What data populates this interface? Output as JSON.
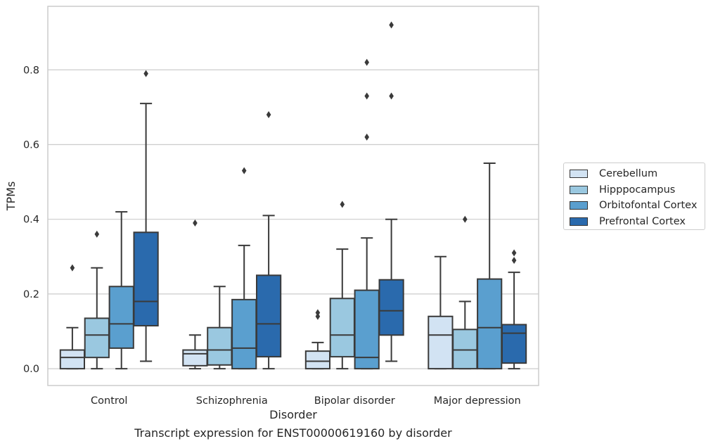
{
  "caption": "Transcript expression for ENST00000619160 by disorder",
  "chart_data": {
    "type": "box",
    "xlabel": "Disorder",
    "ylabel": "TPMs",
    "ylim": [
      -0.045,
      0.97
    ],
    "yticks": [
      0.0,
      0.2,
      0.4,
      0.6,
      0.8
    ],
    "ytick_labels": [
      "0.0",
      "0.2",
      "0.4",
      "0.6",
      "0.8"
    ],
    "grid": "horizontal",
    "legend_position": "right",
    "categories": [
      "Control",
      "Schizophrenia",
      "Bipolar disorder",
      "Major depression"
    ],
    "series": [
      {
        "name": "Cerebellum",
        "color": "#d2e3f3",
        "boxes": [
          {
            "whislo": 0.0,
            "q1": 0.0,
            "med": 0.03,
            "q3": 0.05,
            "whishi": 0.11,
            "fliers": [
              0.27
            ]
          },
          {
            "whislo": 0.0,
            "q1": 0.008,
            "med": 0.04,
            "q3": 0.05,
            "whishi": 0.09,
            "fliers": [
              0.39
            ]
          },
          {
            "whislo": 0.0,
            "q1": 0.0,
            "med": 0.02,
            "q3": 0.047,
            "whishi": 0.07,
            "fliers": [
              0.14,
              0.15
            ]
          },
          {
            "whislo": 0.0,
            "q1": 0.0,
            "med": 0.09,
            "q3": 0.14,
            "whishi": 0.3,
            "fliers": []
          }
        ]
      },
      {
        "name": "Hipppocampus",
        "color": "#9ac8e0",
        "boxes": [
          {
            "whislo": 0.0,
            "q1": 0.03,
            "med": 0.09,
            "q3": 0.135,
            "whishi": 0.27,
            "fliers": [
              0.36
            ]
          },
          {
            "whislo": 0.0,
            "q1": 0.01,
            "med": 0.05,
            "q3": 0.11,
            "whishi": 0.22,
            "fliers": []
          },
          {
            "whislo": 0.0,
            "q1": 0.032,
            "med": 0.09,
            "q3": 0.188,
            "whishi": 0.32,
            "fliers": [
              0.44
            ]
          },
          {
            "whislo": 0.0,
            "q1": 0.0,
            "med": 0.05,
            "q3": 0.105,
            "whishi": 0.18,
            "fliers": [
              0.4
            ]
          }
        ]
      },
      {
        "name": "Orbitofontal Cortex",
        "color": "#5a9fcf",
        "boxes": [
          {
            "whislo": 0.0,
            "q1": 0.055,
            "med": 0.12,
            "q3": 0.22,
            "whishi": 0.42,
            "fliers": []
          },
          {
            "whislo": 0.0,
            "q1": 0.0,
            "med": 0.055,
            "q3": 0.185,
            "whishi": 0.33,
            "fliers": [
              0.53
            ]
          },
          {
            "whislo": 0.0,
            "q1": 0.0,
            "med": 0.03,
            "q3": 0.21,
            "whishi": 0.35,
            "fliers": [
              0.62,
              0.73,
              0.82
            ]
          },
          {
            "whislo": 0.0,
            "q1": 0.0,
            "med": 0.11,
            "q3": 0.24,
            "whishi": 0.55,
            "fliers": []
          }
        ]
      },
      {
        "name": "Prefrontal Cortex",
        "color": "#2a6aad",
        "boxes": [
          {
            "whislo": 0.02,
            "q1": 0.115,
            "med": 0.18,
            "q3": 0.365,
            "whishi": 0.71,
            "fliers": [
              0.79
            ]
          },
          {
            "whislo": 0.0,
            "q1": 0.032,
            "med": 0.12,
            "q3": 0.25,
            "whishi": 0.41,
            "fliers": [
              0.68
            ]
          },
          {
            "whislo": 0.02,
            "q1": 0.09,
            "med": 0.155,
            "q3": 0.238,
            "whishi": 0.4,
            "fliers": [
              0.73,
              0.92
            ]
          },
          {
            "whislo": 0.0,
            "q1": 0.015,
            "med": 0.095,
            "q3": 0.118,
            "whishi": 0.258,
            "fliers": [
              0.29,
              0.31
            ]
          }
        ]
      }
    ]
  }
}
